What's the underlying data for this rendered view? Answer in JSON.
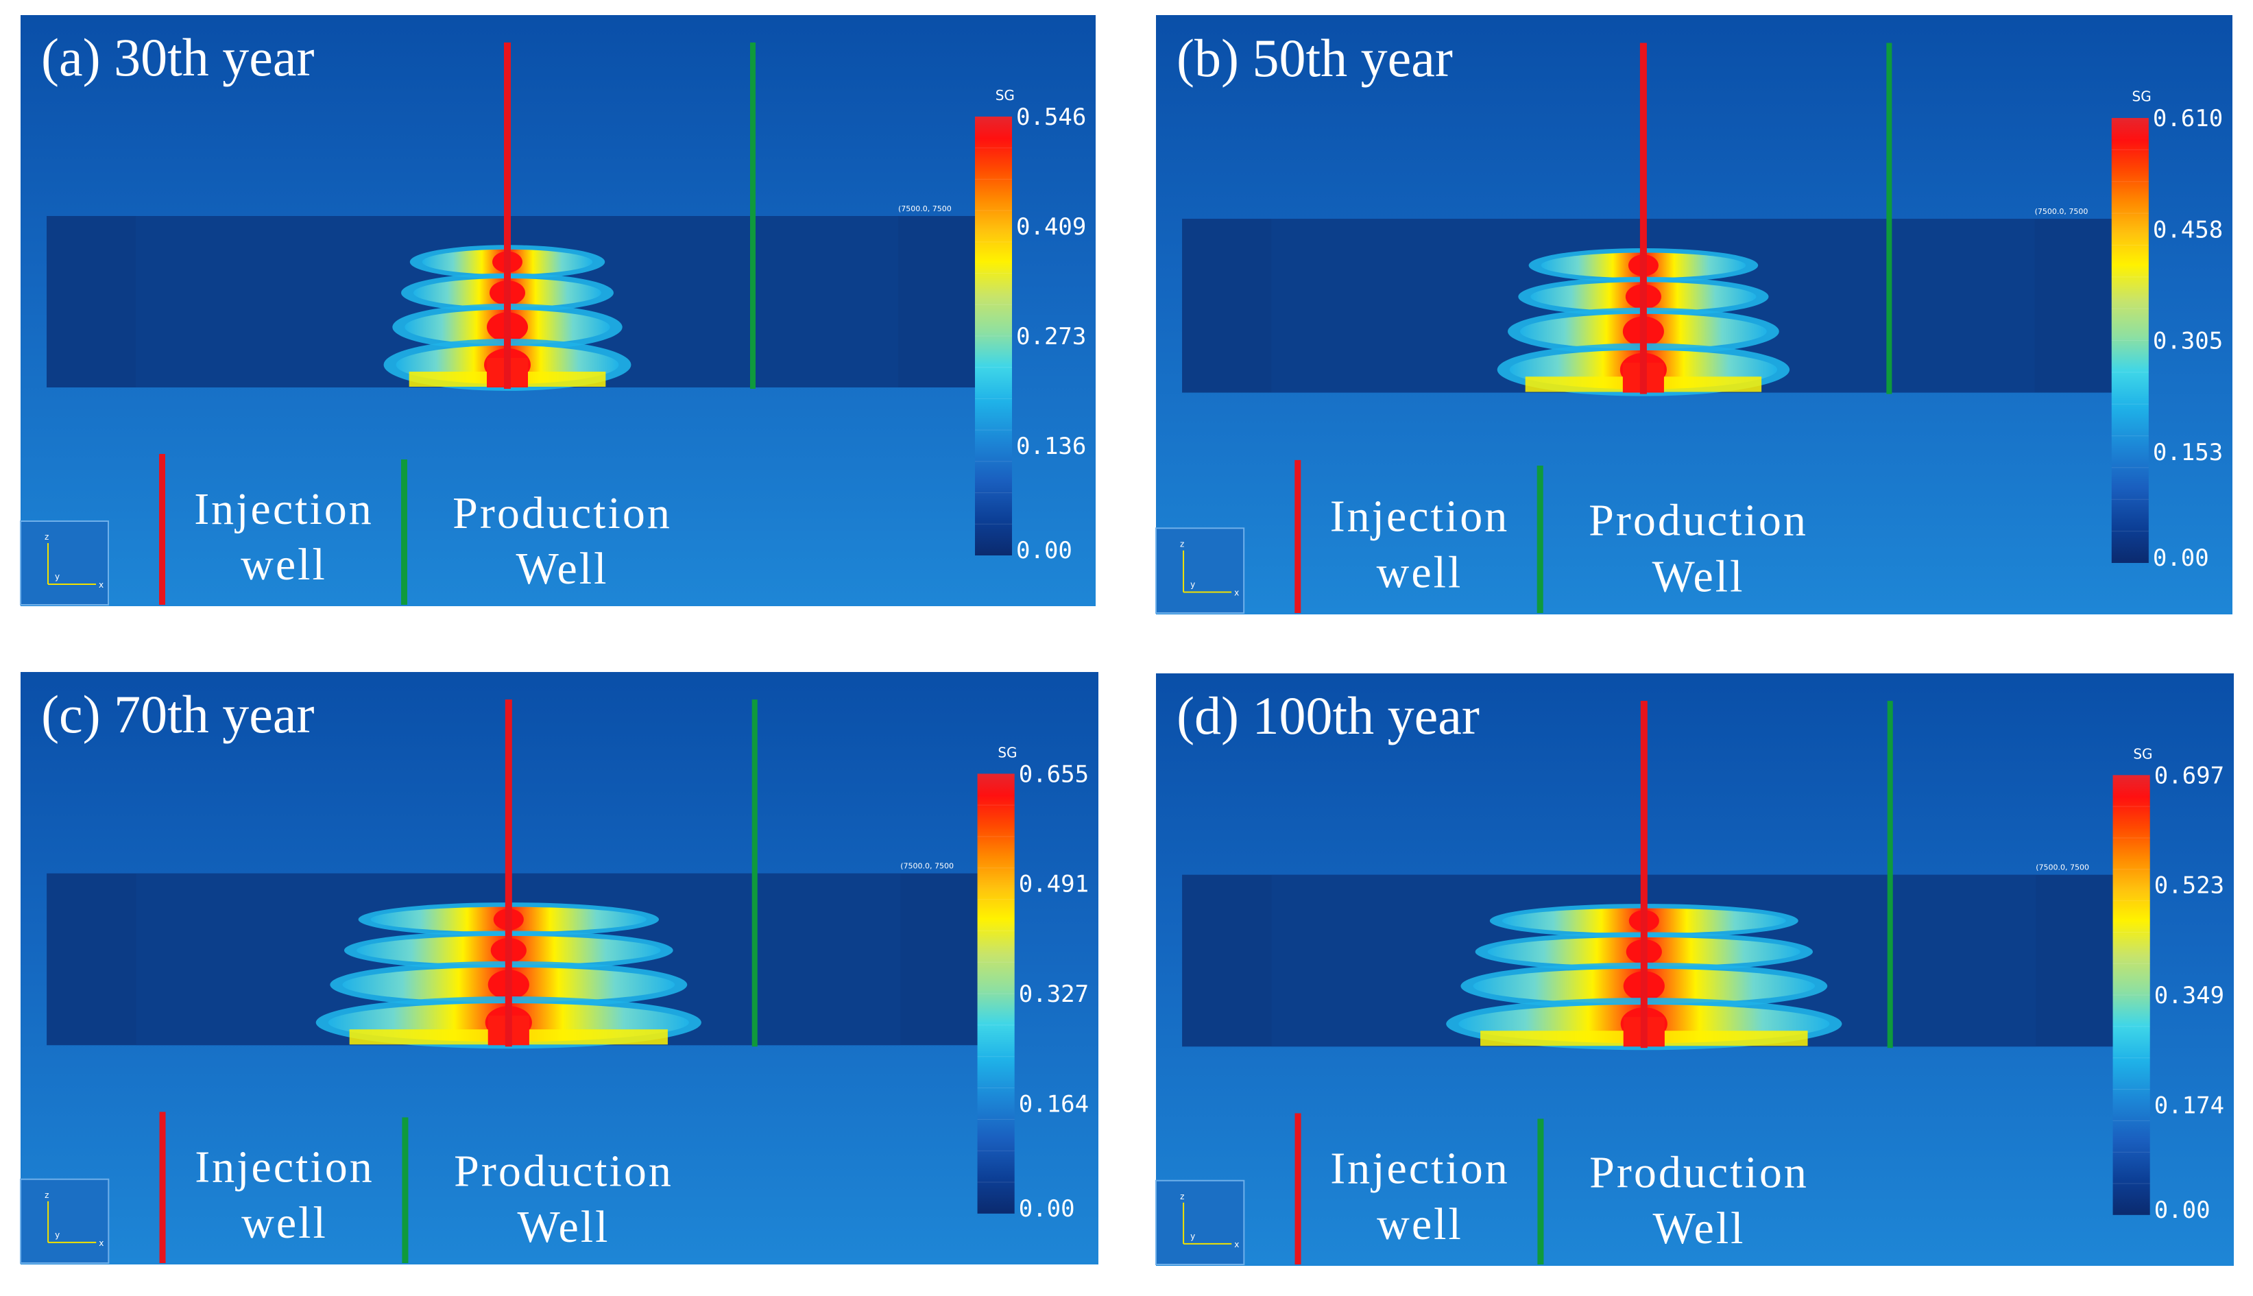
{
  "panels": [
    {
      "title": "(a) 30th year",
      "sg_label": "SG",
      "ticks": [
        "0.546",
        "0.409",
        "0.273",
        "0.136",
        "0.00"
      ],
      "coord": "(7500.0, 7500",
      "plume_extent": 0.65,
      "plume_intensity": 0.55,
      "legend": {
        "injection": [
          "Injection",
          "well"
        ],
        "production": [
          "Production",
          "Well"
        ]
      }
    },
    {
      "title": "(b) 50th year",
      "sg_label": "SG",
      "ticks": [
        "0.610",
        "0.458",
        "0.305",
        "0.153",
        "0.00"
      ],
      "coord": "(7500.0, 7500",
      "plume_extent": 0.78,
      "plume_intensity": 0.6,
      "legend": {
        "injection": [
          "Injection",
          "well"
        ],
        "production": [
          "Production",
          "Well"
        ]
      }
    },
    {
      "title": "(c) 70th year",
      "sg_label": "SG",
      "ticks": [
        "0.655",
        "0.491",
        "0.327",
        "0.164",
        "0.00"
      ],
      "coord": "(7500.0, 7500",
      "plume_extent": 1.05,
      "plume_intensity": 0.65,
      "legend": {
        "injection": [
          "Injection",
          "well"
        ],
        "production": [
          "Production",
          "Well"
        ]
      }
    },
    {
      "title": "(d) 100th year",
      "sg_label": "SG",
      "ticks": [
        "0.697",
        "0.523",
        "0.349",
        "0.174",
        "0.00"
      ],
      "coord": "(7500.0, 7500",
      "plume_extent": 1.08,
      "plume_intensity": 0.7,
      "legend": {
        "injection": [
          "Injection",
          "well"
        ],
        "production": [
          "Production",
          "Well"
        ]
      }
    }
  ],
  "colors": {
    "injection_well": "#e8141c",
    "production_well": "#0f9a3c",
    "background_top": "#0a4fa8",
    "background_bottom": "#1a7ed2",
    "reservoir": "#0c3c86",
    "colormap": [
      "#0b2a6e",
      "#0c3f96",
      "#1a5fbf",
      "#1c86d6",
      "#1fb2e8",
      "#3fd6e8",
      "#8fe0a0",
      "#c8e46a",
      "#fff200",
      "#ffc20e",
      "#ff8a00",
      "#ff4a00",
      "#ff1010",
      "#e6262e"
    ]
  }
}
